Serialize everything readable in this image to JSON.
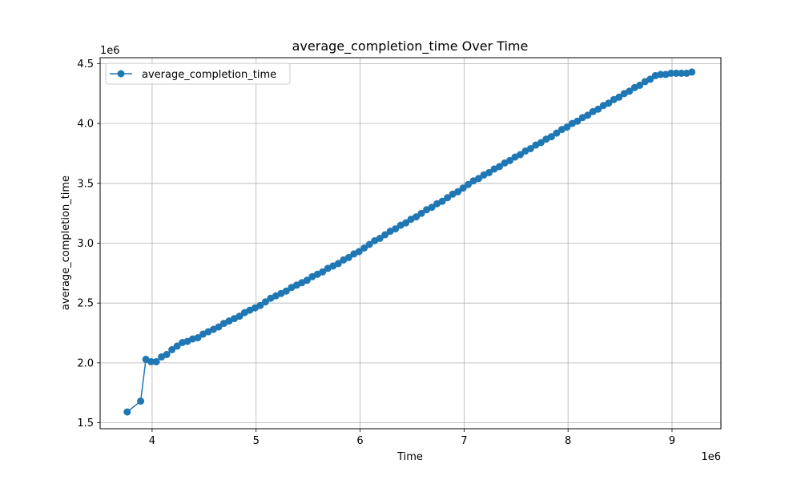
{
  "chart_data": {
    "type": "line",
    "title": "average_completion_time Over Time",
    "xlabel": "Time",
    "ylabel": "average_completion_time",
    "x_offset_label": "1e6",
    "y_offset_label": "1e6",
    "xlim": [
      3.5,
      9.47
    ],
    "ylim": [
      1.45,
      4.55
    ],
    "xticks": [
      4,
      5,
      6,
      7,
      8,
      9
    ],
    "xtick_labels": [
      "4",
      "5",
      "6",
      "7",
      "8",
      "9"
    ],
    "yticks": [
      1.5,
      2.0,
      2.5,
      3.0,
      3.5,
      4.0,
      4.5
    ],
    "ytick_labels": [
      "1.5",
      "2.0",
      "2.5",
      "3.0",
      "3.5",
      "4.0",
      "4.5"
    ],
    "grid": true,
    "legend_position": "top-left",
    "color": "#1f77b4",
    "series": [
      {
        "name": "average_completion_time",
        "x": [
          3.76,
          3.89,
          3.94,
          3.99,
          4.04,
          4.09,
          4.14,
          4.19,
          4.24,
          4.29,
          4.34,
          4.39,
          4.44,
          4.49,
          4.54,
          4.59,
          4.64,
          4.69,
          4.74,
          4.79,
          4.84,
          4.89,
          4.94,
          4.99,
          5.04,
          5.09,
          5.14,
          5.19,
          5.24,
          5.29,
          5.34,
          5.39,
          5.44,
          5.49,
          5.54,
          5.59,
          5.64,
          5.69,
          5.74,
          5.79,
          5.84,
          5.89,
          5.94,
          5.99,
          6.04,
          6.09,
          6.14,
          6.19,
          6.24,
          6.29,
          6.34,
          6.39,
          6.44,
          6.49,
          6.54,
          6.59,
          6.64,
          6.69,
          6.74,
          6.79,
          6.84,
          6.89,
          6.94,
          6.99,
          7.04,
          7.09,
          7.14,
          7.19,
          7.24,
          7.29,
          7.34,
          7.39,
          7.44,
          7.49,
          7.54,
          7.59,
          7.64,
          7.69,
          7.74,
          7.79,
          7.84,
          7.89,
          7.94,
          7.99,
          8.04,
          8.09,
          8.14,
          8.19,
          8.24,
          8.29,
          8.34,
          8.39,
          8.44,
          8.49,
          8.54,
          8.59,
          8.64,
          8.69,
          8.74,
          8.79,
          8.84,
          8.89,
          8.94,
          8.99,
          9.04,
          9.09,
          9.14,
          9.19
        ],
        "values": [
          1.59,
          1.68,
          2.03,
          2.01,
          2.01,
          2.05,
          2.07,
          2.11,
          2.14,
          2.17,
          2.18,
          2.2,
          2.21,
          2.24,
          2.26,
          2.28,
          2.3,
          2.33,
          2.35,
          2.37,
          2.39,
          2.42,
          2.44,
          2.46,
          2.48,
          2.51,
          2.54,
          2.56,
          2.58,
          2.6,
          2.63,
          2.65,
          2.67,
          2.69,
          2.72,
          2.74,
          2.76,
          2.79,
          2.81,
          2.83,
          2.86,
          2.88,
          2.91,
          2.93,
          2.96,
          2.99,
          3.02,
          3.04,
          3.07,
          3.1,
          3.12,
          3.15,
          3.17,
          3.2,
          3.22,
          3.25,
          3.28,
          3.3,
          3.33,
          3.35,
          3.38,
          3.41,
          3.43,
          3.46,
          3.49,
          3.52,
          3.54,
          3.57,
          3.59,
          3.62,
          3.64,
          3.67,
          3.69,
          3.72,
          3.74,
          3.77,
          3.79,
          3.82,
          3.84,
          3.87,
          3.89,
          3.92,
          3.95,
          3.97,
          4.0,
          4.02,
          4.05,
          4.07,
          4.1,
          4.12,
          4.15,
          4.17,
          4.2,
          4.22,
          4.25,
          4.27,
          4.3,
          4.32,
          4.35,
          4.37,
          4.4,
          4.41,
          4.41,
          4.42,
          4.42,
          4.42,
          4.42,
          4.43
        ]
      }
    ]
  }
}
